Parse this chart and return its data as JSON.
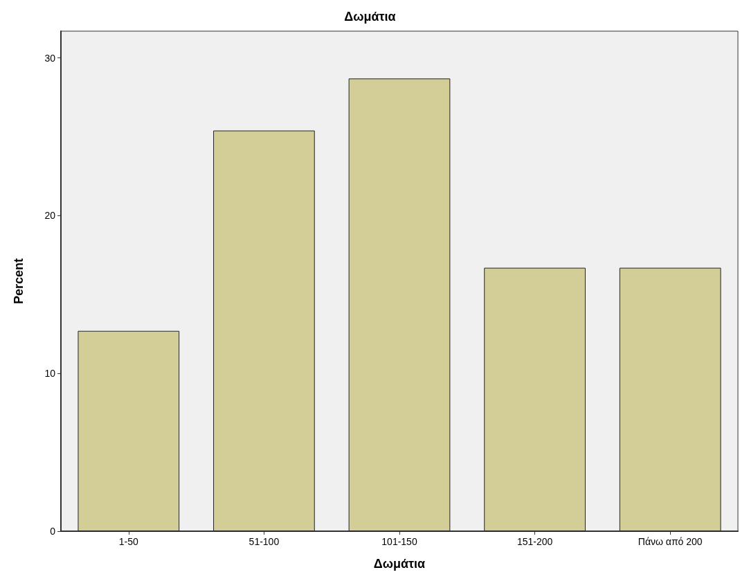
{
  "chart_data": {
    "type": "bar",
    "title": "Δωμάτια",
    "xlabel": "Δωμάτια",
    "ylabel": "Percent",
    "categories": [
      "1-50",
      "51-100",
      "101-150",
      "151-200",
      "Πάνω από 200"
    ],
    "values": [
      12.7,
      25.4,
      28.7,
      16.7,
      16.7
    ],
    "color": "#d3ce97",
    "ylim": [
      0,
      31.7
    ],
    "yticks": [
      0,
      10,
      20,
      30
    ],
    "grid": false
  }
}
